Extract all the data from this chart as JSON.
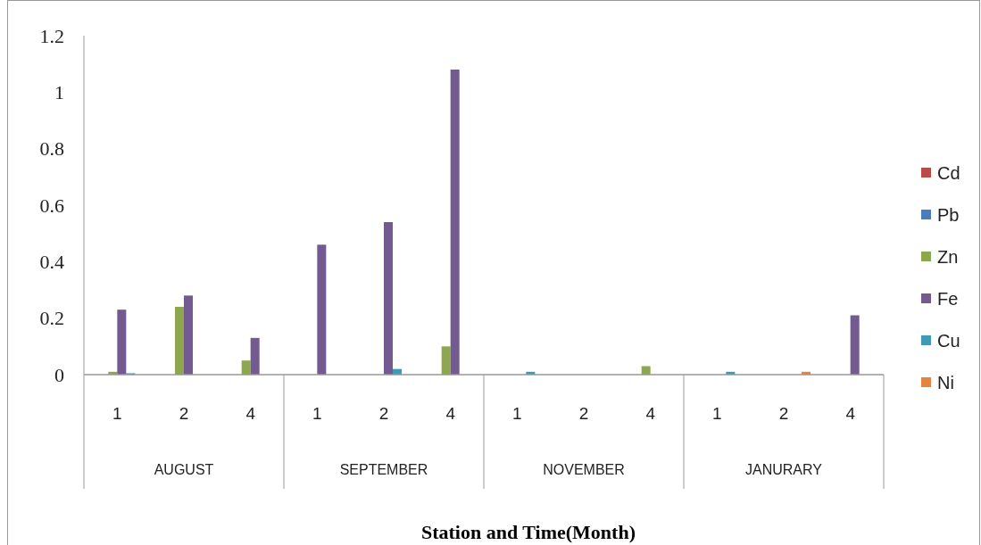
{
  "chart_data": {
    "type": "bar",
    "xlabel": "Station and Time(Month)",
    "categories": [
      "1",
      "2",
      "4",
      "1",
      "2",
      "4",
      "1",
      "2",
      "4",
      "1",
      "2",
      "4"
    ],
    "annotations": [
      "AUGUST",
      "SEPTEMBER",
      "NOVEMBER",
      "JANURARY"
    ],
    "series": [
      {
        "name": "Cd",
        "color": "#b94a48",
        "values": [
          null,
          null,
          null,
          null,
          null,
          null,
          null,
          null,
          null,
          null,
          null,
          null
        ]
      },
      {
        "name": "Pb",
        "color": "#4a7ebb",
        "values": [
          null,
          null,
          null,
          null,
          null,
          null,
          null,
          null,
          null,
          null,
          null,
          null
        ]
      },
      {
        "name": "Zn",
        "color": "#8ea74f",
        "values": [
          0.01,
          0.24,
          0.05,
          null,
          null,
          0.1,
          null,
          null,
          0.03,
          null,
          null,
          null
        ]
      },
      {
        "name": "Fe",
        "color": "#735b91",
        "values": [
          0.23,
          0.28,
          0.13,
          0.46,
          0.54,
          1.08,
          null,
          null,
          null,
          null,
          null,
          0.21
        ]
      },
      {
        "name": "Cu",
        "color": "#4299b4",
        "values": [
          0.005,
          null,
          null,
          null,
          0.02,
          null,
          0.01,
          null,
          null,
          0.01,
          null,
          null
        ]
      },
      {
        "name": "Ni",
        "color": "#e3843f",
        "values": [
          null,
          null,
          null,
          null,
          null,
          null,
          null,
          null,
          null,
          null,
          0.01,
          null
        ]
      }
    ],
    "ylim": [
      0,
      1.2
    ],
    "yticks": [
      0,
      0.2,
      0.4,
      0.6,
      0.8,
      1,
      1.2
    ],
    "legend": "right"
  }
}
